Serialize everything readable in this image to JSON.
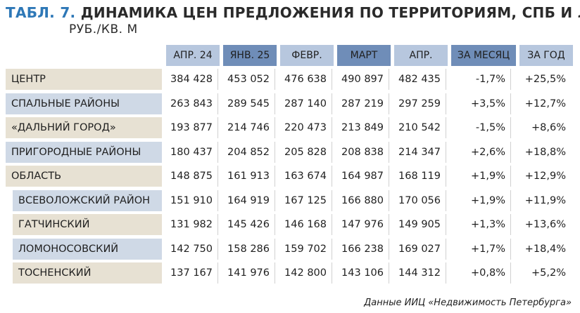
{
  "title": {
    "number": "ТАБЛ. 7.",
    "text": "ДИНАМИКА ЦЕН ПРЕДЛОЖЕНИЯ ПО ТЕРРИТОРИЯМ, СПБ И ЛО,",
    "unit": "РУБ./КВ. М"
  },
  "columns": [
    "АПР. 24",
    "ЯНВ. 25",
    "ФЕВР.",
    "МАРТ",
    "АПР.",
    "ЗА МЕСЯЦ",
    "ЗА ГОД"
  ],
  "rows": [
    {
      "label": "ЦЕНТР",
      "values": [
        "384 428",
        "453 052",
        "476 638",
        "490 897",
        "482 435",
        "-1,7%",
        "+25,5%"
      ]
    },
    {
      "label": "СПАЛЬНЫЕ РАЙОНЫ",
      "values": [
        "263 843",
        "289 545",
        "287 140",
        "287 219",
        "297 259",
        "+3,5%",
        "+12,7%"
      ]
    },
    {
      "label": "«ДАЛЬНИЙ ГОРОД»",
      "values": [
        "193 877",
        "214 746",
        "220 473",
        "213 849",
        "210 542",
        "-1,5%",
        "+8,6%"
      ]
    },
    {
      "label": "ПРИГОРОДНЫЕ РАЙОНЫ",
      "values": [
        "180 437",
        "204 852",
        "205 828",
        "208 838",
        "214 347",
        "+2,6%",
        "+18,8%"
      ]
    },
    {
      "label": "ОБЛАСТЬ",
      "values": [
        "148 875",
        "161 913",
        "163 674",
        "164 987",
        "168 119",
        "+1,9%",
        "+12,9%"
      ]
    },
    {
      "label": "ВСЕВОЛОЖСКИЙ РАЙОН",
      "values": [
        "151 910",
        "164 919",
        "167 125",
        "166 880",
        "170 056",
        "+1,9%",
        "+11,9%"
      ]
    },
    {
      "label": "ГАТЧИНСКИЙ",
      "values": [
        "131 982",
        "145 426",
        "146 168",
        "147 976",
        "149 905",
        "+1,3%",
        "+13,6%"
      ]
    },
    {
      "label": "ЛОМОНОСОВСКИЙ",
      "values": [
        "142 750",
        "158 286",
        "159 702",
        "166 238",
        "169 027",
        "+1,7%",
        "+18,4%"
      ]
    },
    {
      "label": "ТОСНЕНСКИЙ",
      "values": [
        "137 167",
        "141 976",
        "142 800",
        "143 106",
        "144 312",
        "+0,8%",
        "+5,2%"
      ]
    }
  ],
  "source": "Данные ИИЦ «Недвижимость Петербурга»",
  "colors": {
    "accent": "#2e78b7",
    "header_light": "#b7c7de",
    "header_mid": "#6f8db8",
    "row_beige": "#e7e1d3",
    "row_blue": "#cfd9e6"
  }
}
